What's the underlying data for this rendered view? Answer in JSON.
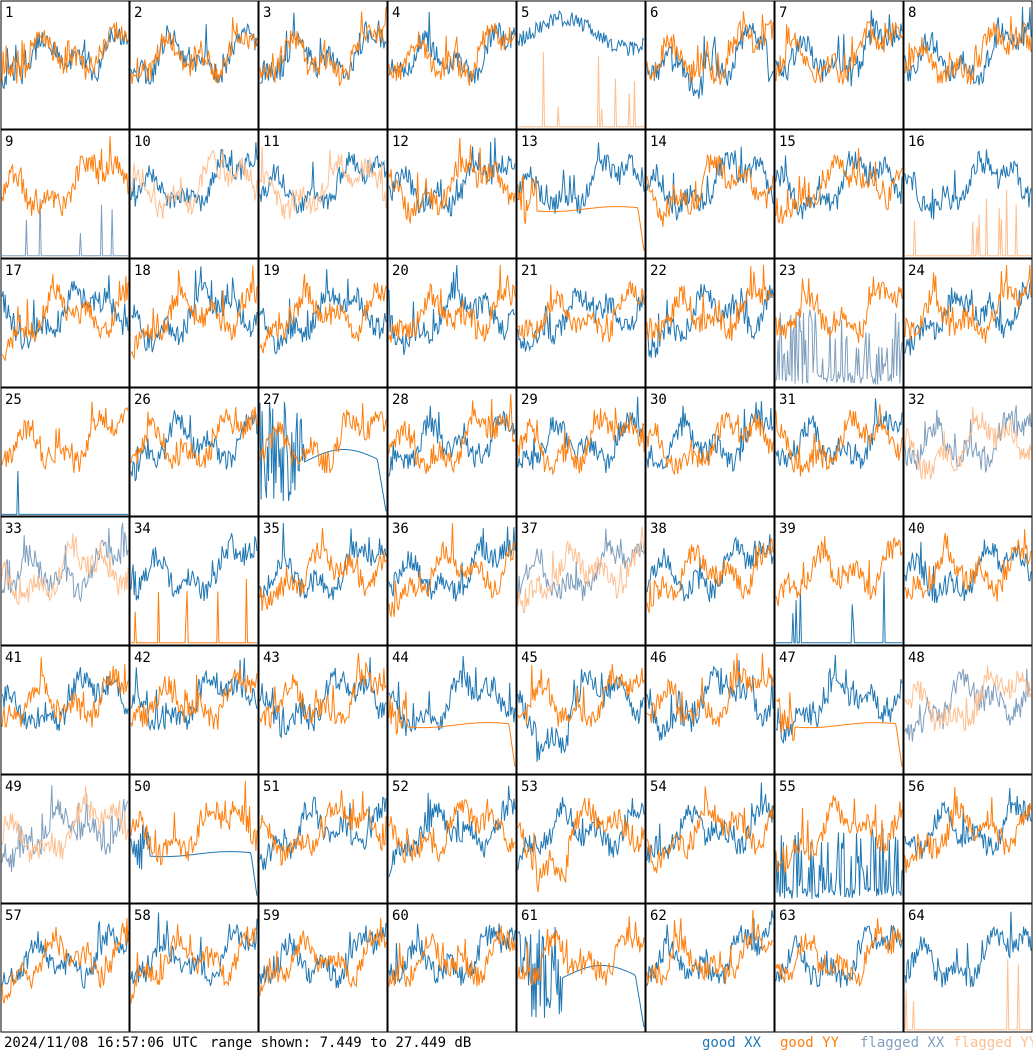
{
  "chart_data": {
    "type": "line",
    "title": "",
    "panel_numbers": [
      1,
      2,
      3,
      4,
      5,
      6,
      7,
      8,
      9,
      10,
      11,
      12,
      13,
      14,
      15,
      16,
      17,
      18,
      19,
      20,
      21,
      22,
      23,
      24,
      25,
      26,
      27,
      28,
      29,
      30,
      31,
      32,
      33,
      34,
      35,
      36,
      37,
      38,
      39,
      40,
      41,
      42,
      43,
      44,
      45,
      46,
      47,
      48,
      49,
      50,
      51,
      52,
      53,
      54,
      55,
      56,
      57,
      58,
      59,
      60,
      61,
      62,
      63,
      64
    ],
    "range_db": [
      7.449,
      27.449
    ],
    "grid": "8x8",
    "series_legend": [
      "good XX",
      "good YY",
      "flagged XX",
      "flagged YY"
    ],
    "colors": {
      "good_xx": "#1f77b4",
      "good_yy": "#ff7f0e",
      "flagged_xx": "#7f9fbf",
      "flagged_yy": "#ffbf8f"
    },
    "panels": {
      "5": {
        "xx": "good",
        "yy": "spikes_flagged",
        "xx_mode": "wavy_high"
      },
      "6": {
        "xx": "good_drop",
        "yy": "good"
      },
      "9": {
        "xx": "spikes_flagged",
        "yy": "good"
      },
      "10": {
        "xx": "good",
        "yy": "flagged"
      },
      "11": {
        "xx": "good",
        "yy": "flagged"
      },
      "13": {
        "xx": "good",
        "yy": "flat_drop"
      },
      "16": {
        "xx": "good",
        "yy": "spikes_flagged"
      },
      "23": {
        "xx": "noise_flagged",
        "yy": "good"
      },
      "25": {
        "xx": "single_spike",
        "yy": "good"
      },
      "27": {
        "xx": "broken",
        "yy": "good"
      },
      "32": {
        "xx": "flagged",
        "yy": "flagged"
      },
      "33": {
        "xx": "flagged",
        "yy": "flagged"
      },
      "34": {
        "xx": "good",
        "yy": "spikes_good"
      },
      "37": {
        "xx": "flagged",
        "yy": "flagged"
      },
      "39": {
        "xx": "spikes_good",
        "yy": "good"
      },
      "44": {
        "xx": "good",
        "yy": "flat_drop"
      },
      "45": {
        "xx": "good_dip",
        "yy": "good"
      },
      "47": {
        "xx": "good",
        "yy": "flat_drop"
      },
      "48": {
        "xx": "flagged",
        "yy": "flagged"
      },
      "49": {
        "xx": "flagged",
        "yy": "flagged"
      },
      "50": {
        "xx": "flat_drop",
        "yy": "good"
      },
      "53": {
        "xx": "good",
        "yy": "good_dip"
      },
      "55": {
        "xx": "noise_good",
        "yy": "good"
      },
      "61": {
        "xx": "broken",
        "yy": "good"
      },
      "64": {
        "xx": "good",
        "yy": "spikes_flagged"
      }
    }
  },
  "footer": {
    "timestamp": "2024/11/08 16:57:06 UTC",
    "range_text": "range shown: 7.449 to 27.449 dB",
    "legend": [
      {
        "label": "good XX",
        "color": "#1f77b4"
      },
      {
        "label": "good YY",
        "color": "#ff7f0e"
      },
      {
        "label": "flagged XX",
        "color": "#7f9fbf"
      },
      {
        "label": "flagged YY",
        "color": "#ffbf8f"
      }
    ]
  }
}
